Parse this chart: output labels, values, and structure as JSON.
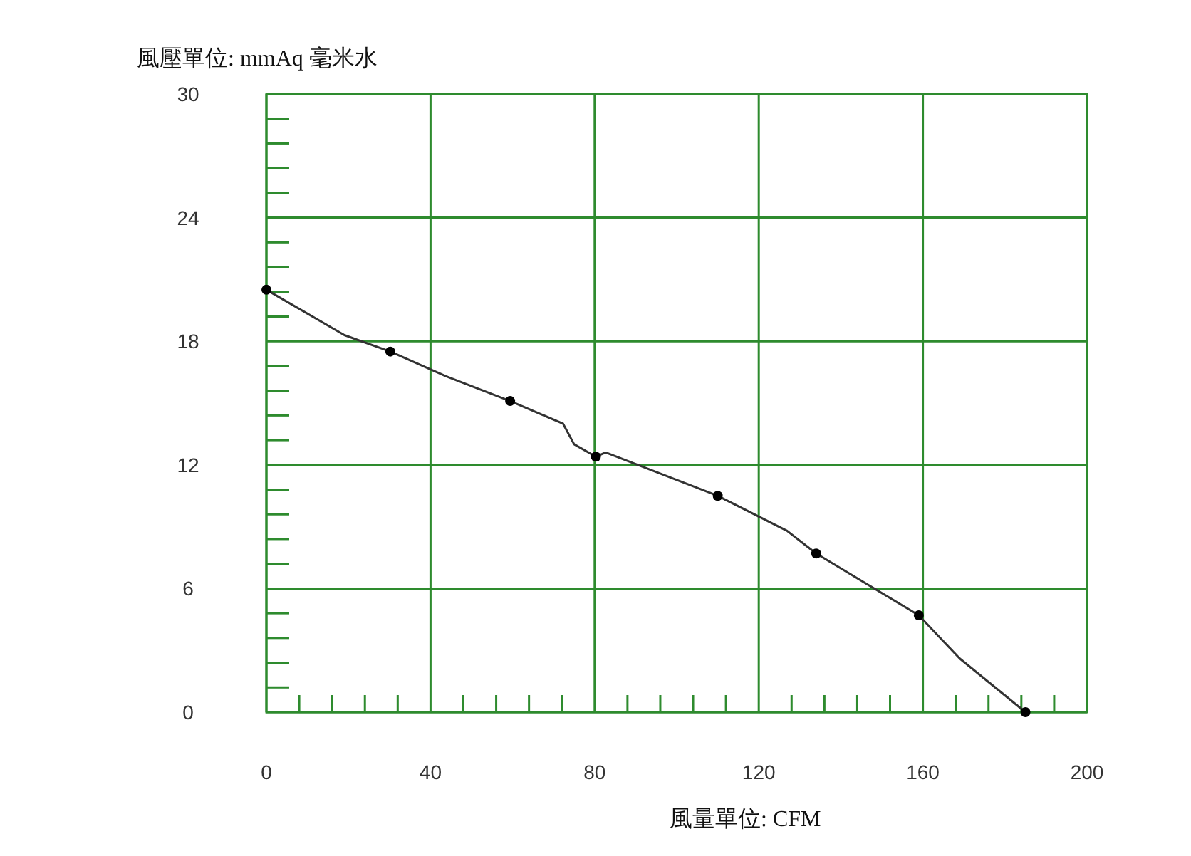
{
  "chart_data": {
    "type": "line",
    "xlabel": "風量單位:  CFM",
    "ylabel": "風壓單位:  mmAq 毫米水",
    "xlim": [
      0,
      200
    ],
    "ylim": [
      0,
      30
    ],
    "xticks": [
      0,
      {
        "value": 8,
        "label": null
      },
      {
        "value": 16,
        "label": null
      },
      {
        "value": 24,
        "label": null
      },
      {
        "value": 32,
        "label": null
      },
      40,
      {
        "value": 48,
        "label": null
      },
      {
        "value": 56,
        "label": null
      },
      {
        "value": 64,
        "label": null
      },
      {
        "value": 72,
        "label": null
      },
      80,
      {
        "value": 88,
        "label": null
      },
      {
        "value": 96,
        "label": null
      },
      {
        "value": 104,
        "label": null
      },
      {
        "value": 112,
        "label": null
      },
      120,
      {
        "value": 128,
        "label": null
      },
      {
        "value": 136,
        "label": null
      },
      {
        "value": 144,
        "label": null
      },
      {
        "value": 152,
        "label": null
      },
      160,
      {
        "value": 168,
        "label": null
      },
      {
        "value": 176,
        "label": null
      },
      {
        "value": 184,
        "label": null
      },
      {
        "value": 192,
        "label": null
      },
      200
    ],
    "yticks": [
      0,
      {
        "value": 1.2,
        "label": null
      },
      {
        "value": 2.4,
        "label": null
      },
      {
        "value": 3.6,
        "label": null
      },
      {
        "value": 4.8,
        "label": null
      },
      6,
      {
        "value": 7.2,
        "label": null
      },
      {
        "value": 8.4,
        "label": null
      },
      {
        "value": 9.6,
        "label": null
      },
      {
        "value": 10.8,
        "label": null
      },
      12,
      {
        "value": 13.2,
        "label": null
      },
      {
        "value": 14.4,
        "label": null
      },
      {
        "value": 15.6,
        "label": null
      },
      {
        "value": 16.8,
        "label": null
      },
      18,
      {
        "value": 19.2,
        "label": null
      },
      {
        "value": 20.4,
        "label": null
      },
      {
        "value": 21.6,
        "label": null
      },
      {
        "value": 22.8,
        "label": null
      },
      24,
      {
        "value": 25.2,
        "label": null
      },
      {
        "value": 26.4,
        "label": null
      },
      {
        "value": 27.6,
        "label": null
      },
      {
        "value": 28.8,
        "label": null
      },
      30
    ],
    "grid": true,
    "series": [
      {
        "type": "line",
        "color": "#333333",
        "marker": "none",
        "x": [
          0,
          19,
          30.2,
          43.8,
          59.4,
          72.3,
          75,
          80.3,
          82.7,
          110,
          126.9,
          134,
          159,
          169,
          185
        ],
        "values": [
          20.5,
          18.3,
          17.5,
          16.3,
          15.1,
          14.0,
          13.0,
          12.4,
          12.6,
          10.5,
          8.8,
          7.7,
          4.7,
          2.6,
          0
        ]
      },
      {
        "type": "scatter",
        "color": "#000000",
        "marker": "circle",
        "x": [
          0,
          30.2,
          59.4,
          80.3,
          110,
          134,
          159,
          185
        ],
        "values": [
          20.5,
          17.5,
          15.1,
          12.4,
          10.5,
          7.7,
          4.7,
          0
        ]
      }
    ]
  }
}
